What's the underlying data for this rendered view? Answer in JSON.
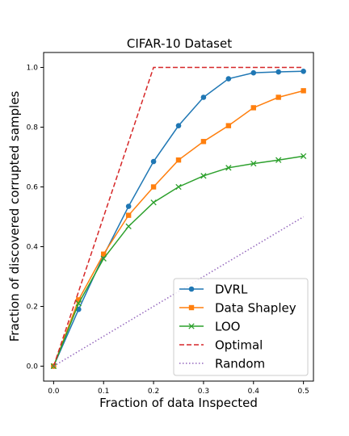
{
  "chart_data": {
    "type": "line",
    "title": "CIFAR-10 Dataset",
    "xlabel": "Fraction of data Inspected",
    "ylabel": "Fraction of discovered corrupted samples",
    "xlim": [
      -0.02,
      0.52
    ],
    "ylim": [
      -0.05,
      1.05
    ],
    "xticks": [
      0.0,
      0.1,
      0.2,
      0.3,
      0.4,
      0.5
    ],
    "xtick_labels": [
      "0.0",
      "0.1",
      "0.2",
      "0.3",
      "0.4",
      "0.5"
    ],
    "yticks": [
      0.0,
      0.2,
      0.4,
      0.6,
      0.8,
      1.0
    ],
    "ytick_labels": [
      "0.0",
      "0.2",
      "0.4",
      "0.6",
      "0.8",
      "1.0"
    ],
    "legend_position": "bottom-right",
    "grid": false,
    "series": [
      {
        "name": "DVRL",
        "color": "#1f77b4",
        "style": "solid",
        "marker": "circle",
        "x": [
          0.0,
          0.05,
          0.1,
          0.15,
          0.2,
          0.25,
          0.3,
          0.35,
          0.4,
          0.45,
          0.5
        ],
        "y": [
          0.0,
          0.19,
          0.37,
          0.535,
          0.685,
          0.805,
          0.9,
          0.962,
          0.982,
          0.985,
          0.987
        ]
      },
      {
        "name": "Data Shapley",
        "color": "#ff7f0e",
        "style": "solid",
        "marker": "square",
        "x": [
          0.0,
          0.05,
          0.1,
          0.15,
          0.2,
          0.25,
          0.3,
          0.35,
          0.4,
          0.45,
          0.5
        ],
        "y": [
          0.0,
          0.222,
          0.375,
          0.505,
          0.6,
          0.69,
          0.752,
          0.805,
          0.865,
          0.9,
          0.922
        ]
      },
      {
        "name": "LOO",
        "color": "#2ca02c",
        "style": "solid",
        "marker": "x",
        "x": [
          0.0,
          0.05,
          0.1,
          0.15,
          0.2,
          0.25,
          0.3,
          0.35,
          0.4,
          0.45,
          0.5
        ],
        "y": [
          0.0,
          0.21,
          0.36,
          0.468,
          0.548,
          0.6,
          0.637,
          0.664,
          0.678,
          0.69,
          0.703
        ]
      },
      {
        "name": "Optimal",
        "color": "#d62728",
        "style": "dashed",
        "marker": "none",
        "x": [
          0.0,
          0.2,
          0.5
        ],
        "y": [
          0.0,
          1.0,
          1.0
        ]
      },
      {
        "name": "Random",
        "color": "#9467bd",
        "style": "dotted",
        "marker": "none",
        "x": [
          0.0,
          0.5
        ],
        "y": [
          0.0,
          0.5
        ]
      }
    ]
  }
}
